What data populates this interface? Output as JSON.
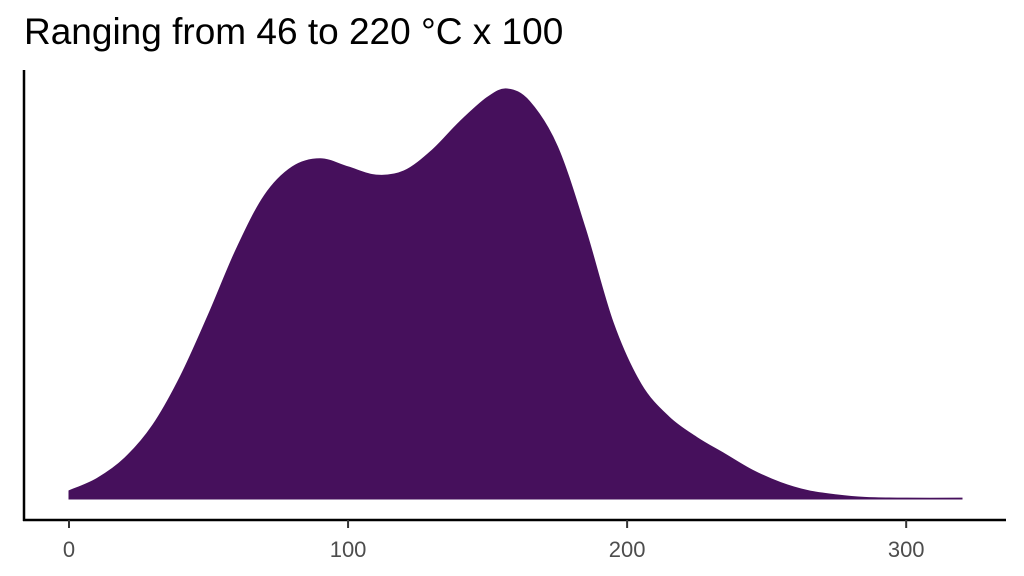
{
  "chart_data": {
    "type": "area",
    "title": "Ranging from 46 to 220 °C x 100",
    "xlabel": "",
    "ylabel": "",
    "xlim": [
      0,
      320
    ],
    "xticks": [
      0,
      100,
      200,
      300
    ],
    "ylim": [
      0,
      1
    ],
    "grid": false,
    "legend": "none",
    "fill_color": "#46105c",
    "series": [
      {
        "x": [
          0,
          10,
          20,
          30,
          40,
          50,
          60,
          70,
          80,
          90,
          100,
          110,
          120,
          130,
          140,
          150,
          157,
          165,
          175,
          185,
          195,
          205,
          215,
          225,
          235,
          245,
          255,
          265,
          275,
          285,
          300,
          320
        ],
        "y": [
          0.02,
          0.05,
          0.1,
          0.18,
          0.3,
          0.45,
          0.61,
          0.74,
          0.81,
          0.83,
          0.81,
          0.79,
          0.8,
          0.85,
          0.92,
          0.98,
          1.0,
          0.97,
          0.86,
          0.66,
          0.43,
          0.28,
          0.2,
          0.15,
          0.11,
          0.07,
          0.04,
          0.02,
          0.01,
          0.004,
          0.002,
          0.002
        ]
      }
    ]
  }
}
